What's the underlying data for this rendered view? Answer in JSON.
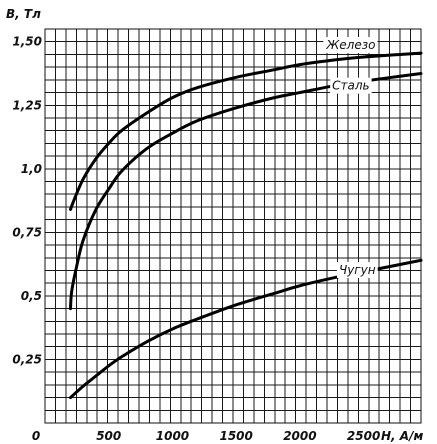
{
  "chart_data": {
    "type": "line",
    "title": "",
    "xlabel": "H, A/м",
    "ylabel": "B, Тл",
    "xlim": [
      0,
      2950
    ],
    "ylim": [
      0,
      1.55
    ],
    "x_ticks": [
      {
        "value": 500,
        "label": "500"
      },
      {
        "value": 1000,
        "label": "1000"
      },
      {
        "value": 1500,
        "label": "1500"
      },
      {
        "value": 2000,
        "label": "2000"
      },
      {
        "value": 2500,
        "label": "2500"
      }
    ],
    "x_origin_label": "0",
    "y_ticks": [
      {
        "value": 0.25,
        "label": "0,25"
      },
      {
        "value": 0.5,
        "label": "0,5"
      },
      {
        "value": 0.75,
        "label": "0,75"
      },
      {
        "value": 1.0,
        "label": "1,0"
      },
      {
        "value": 1.25,
        "label": "1,25"
      },
      {
        "value": 1.5,
        "label": "1,50"
      }
    ],
    "grid": true,
    "series": [
      {
        "name": "Железо",
        "label_x": 2400,
        "label_y": 1.485,
        "x": [
          200,
          230,
          300,
          400,
          500,
          600,
          800,
          1000,
          1200,
          1500,
          1800,
          2000,
          2300,
          2500,
          2800,
          2950
        ],
        "y": [
          0.84,
          0.88,
          0.96,
          1.04,
          1.1,
          1.15,
          1.22,
          1.28,
          1.32,
          1.36,
          1.39,
          1.41,
          1.43,
          1.44,
          1.45,
          1.455
        ]
      },
      {
        "name": "Сталь",
        "label_x": 2400,
        "label_y": 1.325,
        "x": [
          200,
          210,
          250,
          300,
          400,
          500,
          600,
          800,
          1000,
          1200,
          1500,
          1800,
          2000,
          2300,
          2500,
          2800,
          2950
        ],
        "y": [
          0.45,
          0.52,
          0.62,
          0.72,
          0.84,
          0.92,
          0.99,
          1.08,
          1.14,
          1.19,
          1.24,
          1.28,
          1.3,
          1.33,
          1.345,
          1.365,
          1.375
        ]
      },
      {
        "name": "Чугун",
        "label_x": 2450,
        "label_y": 0.6,
        "x": [
          200,
          300,
          400,
          500,
          600,
          800,
          1000,
          1200,
          1500,
          1800,
          2000,
          2300,
          2500,
          2800,
          2950
        ],
        "y": [
          0.1,
          0.145,
          0.185,
          0.225,
          0.26,
          0.32,
          0.37,
          0.41,
          0.465,
          0.51,
          0.54,
          0.575,
          0.595,
          0.625,
          0.64
        ]
      }
    ]
  }
}
